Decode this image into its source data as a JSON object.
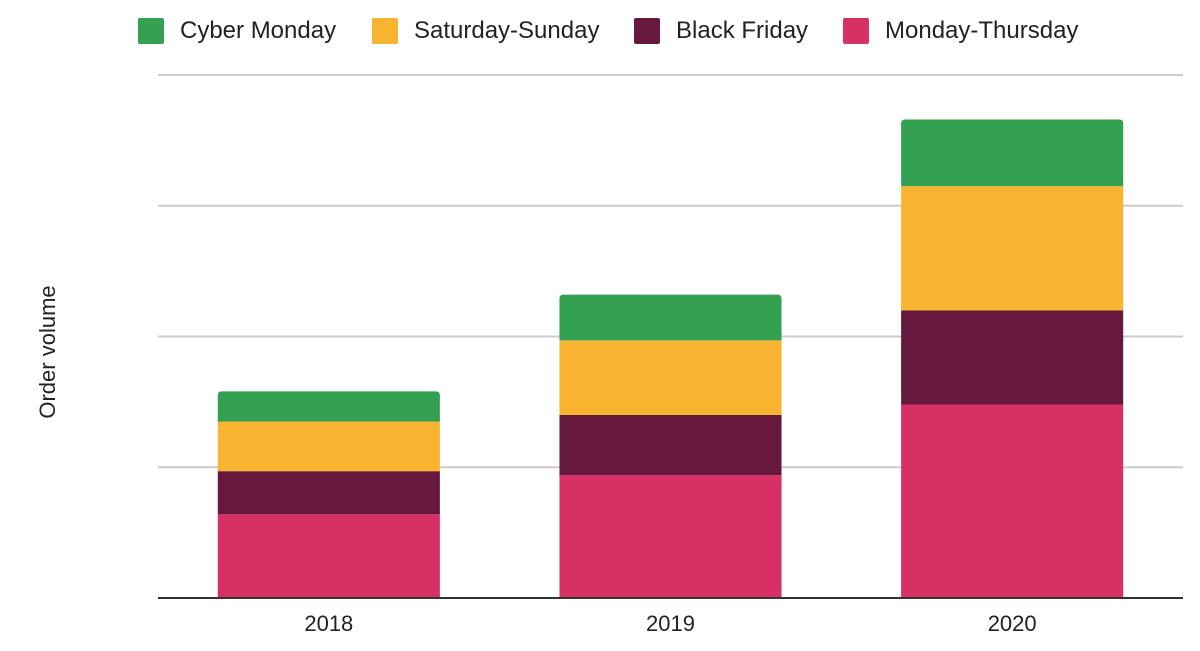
{
  "chart_data": {
    "type": "bar",
    "stacked": true,
    "categories": [
      "2018",
      "2019",
      "2020"
    ],
    "series": [
      {
        "name": "Monday-Thursday",
        "color": "#D63065",
        "values": [
          32,
          47,
          74
        ]
      },
      {
        "name": "Black Friday",
        "color": "#66193D",
        "values": [
          16.5,
          23,
          36
        ]
      },
      {
        "name": "Saturday-Sunday",
        "color": "#F8B331",
        "values": [
          19,
          28.5,
          47.5
        ]
      },
      {
        "name": "Cyber Monday",
        "color": "#34A052",
        "values": [
          11.5,
          17.5,
          25.5
        ]
      }
    ],
    "legend_order": [
      "Cyber Monday",
      "Saturday-Sunday",
      "Black Friday",
      "Monday-Thursday"
    ],
    "legend_position": "top",
    "title": "",
    "xlabel": "",
    "ylabel": "Order volume",
    "ylim": [
      0,
      200
    ],
    "y_ticks": [
      0,
      50,
      100,
      150,
      200
    ],
    "y_tick_labels_shown": false,
    "grid": true,
    "gridline_color": "#cccccc",
    "axis_color": "#333333"
  }
}
